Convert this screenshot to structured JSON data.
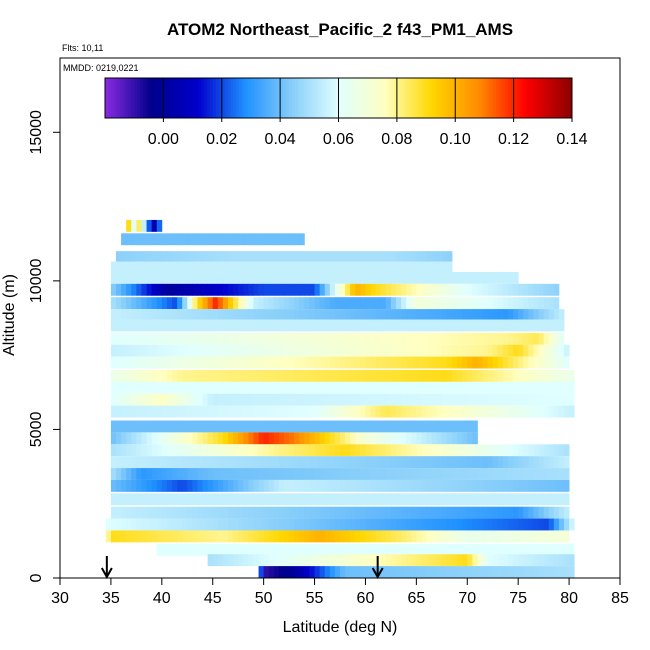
{
  "chart_data": {
    "type": "heatmap",
    "title": "ATOM2 Northeast_Pacific_2 f43_PM1_AMS",
    "flights_note": "Flts: 10,11",
    "date_note": "MMDD: 0219,0221",
    "xlabel": "Latitude (deg N)",
    "ylabel": "Altitude (m)",
    "xlim": [
      30,
      85
    ],
    "ylim": [
      0,
      17500
    ],
    "x_ticks": [
      30,
      35,
      40,
      45,
      50,
      55,
      60,
      65,
      70,
      75,
      80,
      85
    ],
    "y_ticks": [
      0,
      5000,
      10000,
      15000
    ],
    "colorbar": {
      "range": [
        -0.02,
        0.14
      ],
      "ticks": [
        0.0,
        0.02,
        0.04,
        0.06,
        0.08,
        0.1,
        0.12,
        0.14
      ],
      "tick_labels": [
        "0.00",
        "0.02",
        "0.04",
        "0.06",
        "0.08",
        "0.10",
        "0.12",
        "0.14"
      ],
      "colors": [
        "#8a2be2",
        "#00008b",
        "#0000cd",
        "#1e90ff",
        "#87cefa",
        "#e0ffff",
        "#ffffc0",
        "#ffd700",
        "#ff8c00",
        "#ff0000",
        "#8b0000"
      ]
    },
    "arrows_latitude": [
      34.6,
      61.2
    ],
    "bands": [
      {
        "alt": 11850,
        "lat": [
          36.5,
          40.0
        ],
        "value": 0.04,
        "segments": [
          [
            36.6,
            0.1
          ],
          [
            37.2,
            0.06
          ],
          [
            37.9,
            0.09
          ],
          [
            38.5,
            0.03
          ],
          [
            39.4,
            0.0
          ]
        ]
      },
      {
        "alt": 11400,
        "lat": [
          36.0,
          54.0
        ],
        "value": 0.04
      },
      {
        "alt": 10800,
        "lat": [
          35.5,
          68.5
        ],
        "value": 0.045,
        "segments": [
          [
            48.0,
            0.05
          ],
          [
            62.0,
            0.05
          ]
        ]
      },
      {
        "alt": 10450,
        "lat": [
          35.0,
          68.5
        ],
        "value": 0.055
      },
      {
        "alt": 10100,
        "lat": [
          35.0,
          75.0
        ],
        "value": 0.055
      },
      {
        "alt": 9700,
        "lat": [
          35.0,
          79.0
        ],
        "value": 0.045,
        "segments": [
          [
            40.5,
            0.0
          ],
          [
            45.0,
            0.01
          ],
          [
            50.0,
            0.02
          ],
          [
            55.0,
            0.02
          ],
          [
            59.0,
            0.1
          ],
          [
            61.0,
            0.09
          ],
          [
            64.0,
            0.08
          ],
          [
            70.0,
            0.06
          ]
        ]
      },
      {
        "alt": 9250,
        "lat": [
          35.0,
          79.0
        ],
        "value": 0.05,
        "segments": [
          [
            41.5,
            0.02
          ],
          [
            43.5,
            0.09
          ],
          [
            45.3,
            0.12
          ],
          [
            49.0,
            0.055
          ],
          [
            57.0,
            0.035
          ],
          [
            62.0,
            0.035
          ],
          [
            65.0,
            0.07
          ]
        ]
      },
      {
        "alt": 8850,
        "lat": [
          35.0,
          79.5
        ],
        "value": 0.055,
        "segments": [
          [
            74.0,
            0.03
          ]
        ]
      },
      {
        "alt": 8500,
        "lat": [
          35.0,
          79.5
        ],
        "value": 0.055
      },
      {
        "alt": 8050,
        "lat": [
          35.0,
          79.5
        ],
        "value": 0.06,
        "segments": [
          [
            74.0,
            0.08
          ],
          [
            77.0,
            0.085
          ]
        ]
      },
      {
        "alt": 7650,
        "lat": [
          35.0,
          80.0
        ],
        "value": 0.055,
        "segments": [
          [
            72.0,
            0.08
          ],
          [
            75.0,
            0.09
          ]
        ]
      },
      {
        "alt": 7250,
        "lat": [
          35.0,
          80.0
        ],
        "value": 0.06,
        "segments": [
          [
            68.0,
            0.09
          ],
          [
            71.0,
            0.1
          ]
        ]
      },
      {
        "alt": 6800,
        "lat": [
          35.0,
          80.5
        ],
        "value": 0.065,
        "segments": [
          [
            42.0,
            0.08
          ],
          [
            55.0,
            0.085
          ],
          [
            68.0,
            0.09
          ]
        ]
      },
      {
        "alt": 6400,
        "lat": [
          35.0,
          80.5
        ],
        "value": 0.06
      },
      {
        "alt": 6000,
        "lat": [
          35.0,
          80.5
        ],
        "value": 0.06,
        "segments": [
          [
            40.0,
            0.075
          ],
          [
            45.0,
            0.055
          ]
        ]
      },
      {
        "alt": 5600,
        "lat": [
          35.0,
          80.5
        ],
        "value": 0.055,
        "segments": [
          [
            55.0,
            0.06
          ],
          [
            62.0,
            0.085
          ]
        ]
      },
      {
        "alt": 5100,
        "lat": [
          35.0,
          71.0
        ],
        "value": 0.04
      },
      {
        "alt": 4700,
        "lat": [
          35.0,
          71.0
        ],
        "value": 0.04,
        "segments": [
          [
            46.0,
            0.09
          ],
          [
            50.0,
            0.12
          ],
          [
            53.0,
            0.11
          ],
          [
            60.0,
            0.07
          ]
        ]
      },
      {
        "alt": 4300,
        "lat": [
          35.0,
          80.0
        ],
        "value": 0.05,
        "segments": [
          [
            51.0,
            0.08
          ],
          [
            58.0,
            0.09
          ]
        ]
      },
      {
        "alt": 3900,
        "lat": [
          35.0,
          80.0
        ],
        "value": 0.055,
        "segments": [
          [
            72.0,
            0.04
          ]
        ]
      },
      {
        "alt": 3500,
        "lat": [
          35.0,
          80.0
        ],
        "value": 0.05,
        "segments": [
          [
            38.0,
            0.03
          ],
          [
            45.0,
            0.04
          ]
        ]
      },
      {
        "alt": 3100,
        "lat": [
          35.0,
          80.0
        ],
        "value": 0.04,
        "segments": [
          [
            42.0,
            0.02
          ],
          [
            52.0,
            0.055
          ]
        ]
      },
      {
        "alt": 2650,
        "lat": [
          35.0,
          80.0
        ],
        "value": 0.055
      },
      {
        "alt": 2200,
        "lat": [
          35.0,
          80.0
        ],
        "value": 0.055,
        "segments": [
          [
            75.0,
            0.03
          ]
        ]
      },
      {
        "alt": 1800,
        "lat": [
          34.5,
          80.5
        ],
        "value": 0.06,
        "segments": [
          [
            78.0,
            0.02
          ]
        ]
      },
      {
        "alt": 1400,
        "lat": [
          34.5,
          80.0
        ],
        "value": 0.07,
        "segments": [
          [
            35.0,
            0.09
          ],
          [
            46.0,
            0.08
          ],
          [
            55.5,
            0.1
          ],
          [
            63.0,
            0.085
          ],
          [
            70.0,
            0.065
          ]
        ]
      },
      {
        "alt": 950,
        "lat": [
          39.5,
          80.5
        ],
        "value": 0.06
      },
      {
        "alt": 600,
        "lat": [
          44.5,
          80.5
        ],
        "value": 0.05,
        "segments": [
          [
            70.0,
            0.09
          ],
          [
            72.0,
            0.06
          ]
        ]
      },
      {
        "alt": 200,
        "lat": [
          49.5,
          80.5
        ],
        "value": 0.05,
        "segments": [
          [
            50.0,
            -0.01
          ],
          [
            53.0,
            0.0
          ],
          [
            58.0,
            0.04
          ]
        ]
      }
    ]
  }
}
